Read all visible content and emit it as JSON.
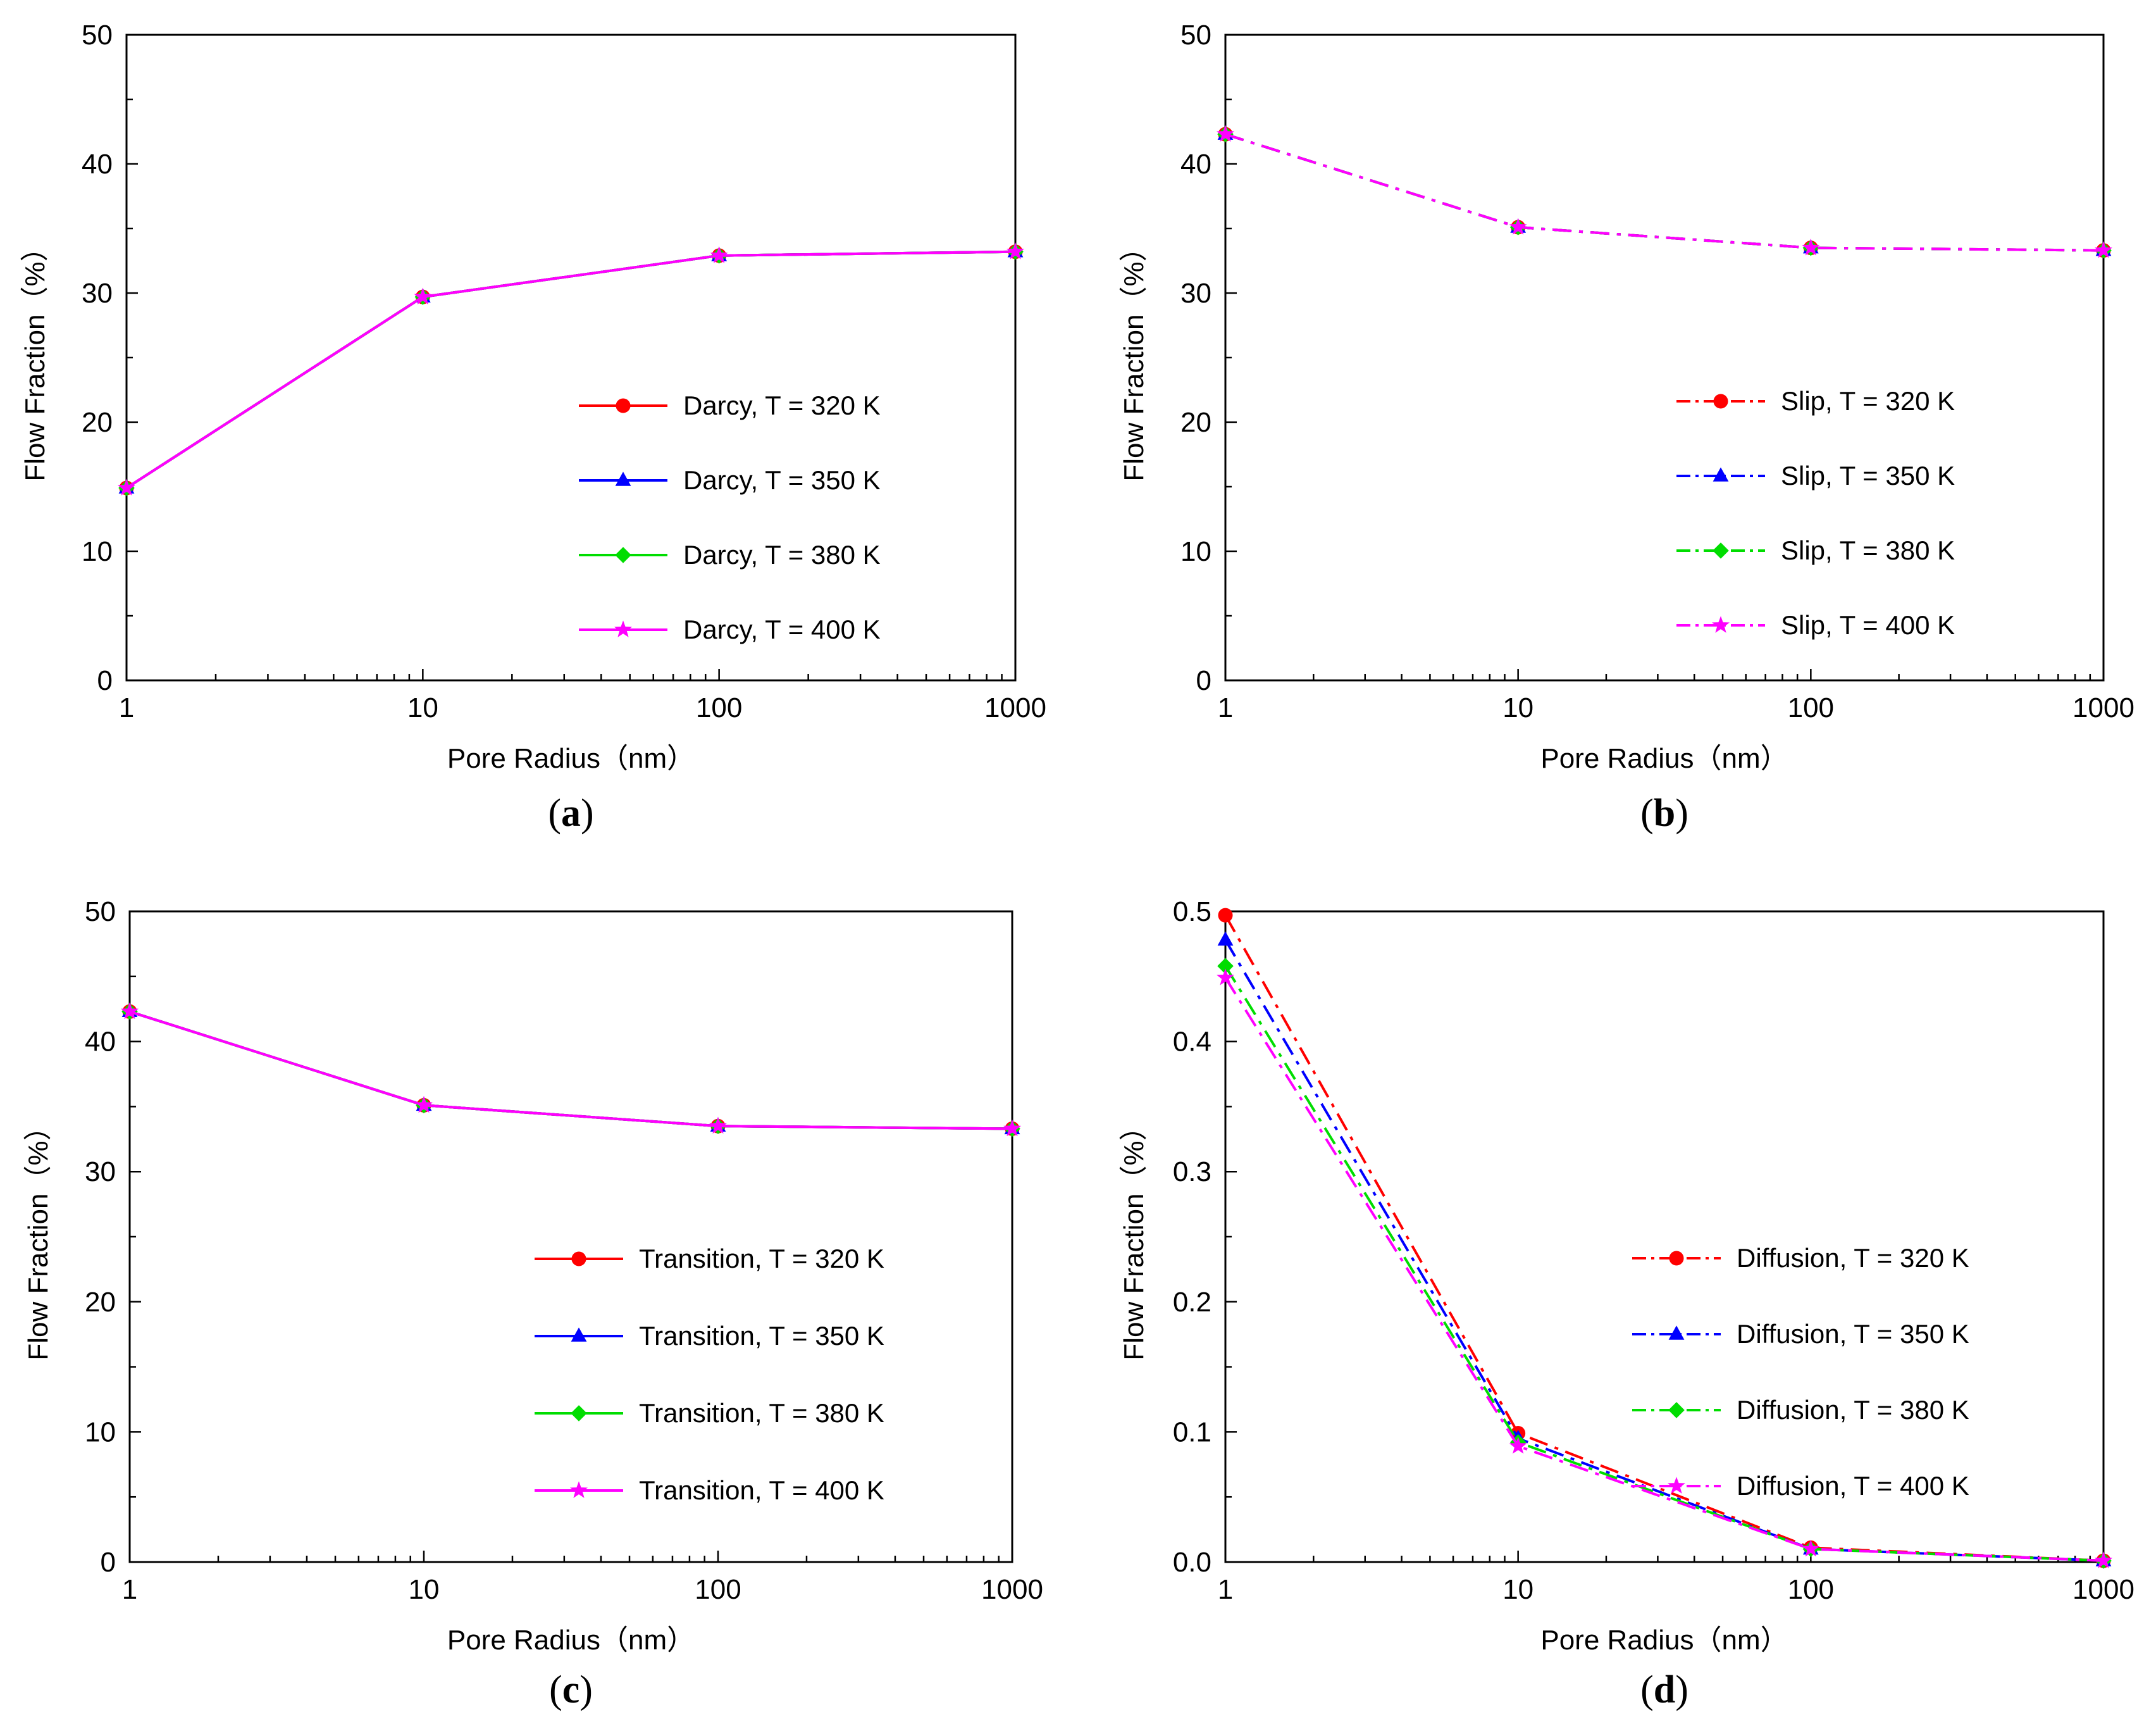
{
  "chart_data": [
    {
      "type": "line",
      "panel": "a",
      "xscale": "log",
      "xlabel": "Pore Radius（nm）",
      "ylabel": "Flow Fraction（%）",
      "xlim": [
        1,
        1000
      ],
      "ylim": [
        0,
        50
      ],
      "xticks": [
        "1",
        "10",
        "100",
        "1000"
      ],
      "yticks": [
        "0",
        "10",
        "20",
        "30",
        "40",
        "50"
      ],
      "x": [
        1,
        10,
        100,
        1000
      ],
      "line_style": "solid",
      "series": [
        {
          "name": "Darcy, T = 320 K",
          "color": "#ff0000",
          "marker": "circle",
          "values": [
            14.9,
            29.7,
            32.9,
            33.2
          ]
        },
        {
          "name": "Darcy, T = 350 K",
          "color": "#0000ff",
          "marker": "triangle",
          "values": [
            14.9,
            29.7,
            32.9,
            33.2
          ]
        },
        {
          "name": "Darcy, T = 380 K",
          "color": "#00dd00",
          "marker": "diamond",
          "values": [
            14.9,
            29.7,
            32.9,
            33.2
          ]
        },
        {
          "name": "Darcy, T = 400 K",
          "color": "#ff00ff",
          "marker": "star",
          "values": [
            14.9,
            29.7,
            32.9,
            33.2
          ]
        }
      ]
    },
    {
      "type": "line",
      "panel": "b",
      "xscale": "log",
      "xlabel": "Pore Radius（nm）",
      "ylabel": "Flow Fraction（%）",
      "xlim": [
        1,
        1000
      ],
      "ylim": [
        0,
        50
      ],
      "xticks": [
        "1",
        "10",
        "100",
        "1000"
      ],
      "yticks": [
        "0",
        "10",
        "20",
        "30",
        "40",
        "50"
      ],
      "x": [
        1,
        10,
        100,
        1000
      ],
      "line_style": "dashdot",
      "series": [
        {
          "name": "Slip, T = 320 K",
          "color": "#ff0000",
          "marker": "circle",
          "values": [
            42.3,
            35.1,
            33.5,
            33.3
          ]
        },
        {
          "name": "Slip, T = 350 K",
          "color": "#0000ff",
          "marker": "triangle",
          "values": [
            42.3,
            35.1,
            33.5,
            33.3
          ]
        },
        {
          "name": "Slip, T = 380 K",
          "color": "#00dd00",
          "marker": "diamond",
          "values": [
            42.3,
            35.1,
            33.5,
            33.3
          ]
        },
        {
          "name": "Slip, T = 400 K",
          "color": "#ff00ff",
          "marker": "star",
          "values": [
            42.3,
            35.1,
            33.5,
            33.3
          ]
        }
      ]
    },
    {
      "type": "line",
      "panel": "c",
      "xscale": "log",
      "xlabel": "Pore Radius（nm）",
      "ylabel": "Flow Fraction（%）",
      "xlim": [
        1,
        1000
      ],
      "ylim": [
        0,
        50
      ],
      "xticks": [
        "1",
        "10",
        "100",
        "1000"
      ],
      "yticks": [
        "0",
        "10",
        "20",
        "30",
        "40",
        "50"
      ],
      "x": [
        1,
        10,
        100,
        1000
      ],
      "line_style": "solid",
      "series": [
        {
          "name": "Transition, T = 320 K",
          "color": "#ff0000",
          "marker": "circle",
          "values": [
            42.3,
            35.1,
            33.5,
            33.3
          ]
        },
        {
          "name": "Transition, T = 350 K",
          "color": "#0000ff",
          "marker": "triangle",
          "values": [
            42.3,
            35.1,
            33.5,
            33.3
          ]
        },
        {
          "name": "Transition, T = 380 K",
          "color": "#00dd00",
          "marker": "diamond",
          "values": [
            42.3,
            35.1,
            33.5,
            33.3
          ]
        },
        {
          "name": "Transition, T = 400 K",
          "color": "#ff00ff",
          "marker": "star",
          "values": [
            42.3,
            35.1,
            33.5,
            33.3
          ]
        }
      ]
    },
    {
      "type": "line",
      "panel": "d",
      "xscale": "log",
      "xlabel": "Pore Radius（nm）",
      "ylabel": "Flow Fraction（%）",
      "xlim": [
        1,
        1000
      ],
      "ylim": [
        0,
        0.5
      ],
      "xticks": [
        "1",
        "10",
        "100",
        "1000"
      ],
      "yticks": [
        "0.0",
        "0.1",
        "0.2",
        "0.3",
        "0.4",
        "0.5"
      ],
      "x": [
        1,
        10,
        100,
        1000
      ],
      "line_style": "dashdot",
      "series": [
        {
          "name": "Diffusion, T = 320 K",
          "color": "#ff0000",
          "marker": "circle",
          "values": [
            0.497,
            0.099,
            0.011,
            0.001
          ]
        },
        {
          "name": "Diffusion, T = 350 K",
          "color": "#0000ff",
          "marker": "triangle",
          "values": [
            0.478,
            0.095,
            0.01,
            0.001
          ]
        },
        {
          "name": "Diffusion, T = 380 K",
          "color": "#00dd00",
          "marker": "diamond",
          "values": [
            0.458,
            0.092,
            0.01,
            0.001
          ]
        },
        {
          "name": "Diffusion, T = 400 K",
          "color": "#ff00ff",
          "marker": "star",
          "values": [
            0.449,
            0.089,
            0.01,
            0.001
          ]
        }
      ]
    }
  ]
}
